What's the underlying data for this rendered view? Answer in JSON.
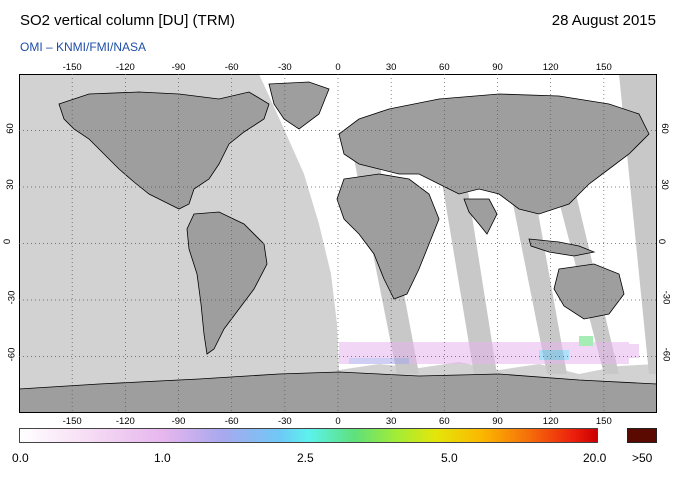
{
  "header": {
    "title": "SO2 vertical column [DU] (TRM)",
    "date": "28 August 2015",
    "source": "OMI  –  KNMI/FMI/NASA"
  },
  "map": {
    "lon_ticks": [
      "-150",
      "-120",
      "-90",
      "-60",
      "-30",
      "0",
      "30",
      "60",
      "90",
      "120",
      "150"
    ],
    "lat_ticks": [
      "60",
      "30",
      "0",
      "-30",
      "-60"
    ],
    "colors": {
      "ocean": "#d2d2d2",
      "land": "#9e9e9e",
      "swath": "#ffffff",
      "coast": "#000000"
    }
  },
  "colorbar": {
    "labels": [
      "0.0",
      "1.0",
      "2.5",
      "5.0",
      "20.0",
      ">50"
    ],
    "overflow_color": "#5a0a00"
  }
}
